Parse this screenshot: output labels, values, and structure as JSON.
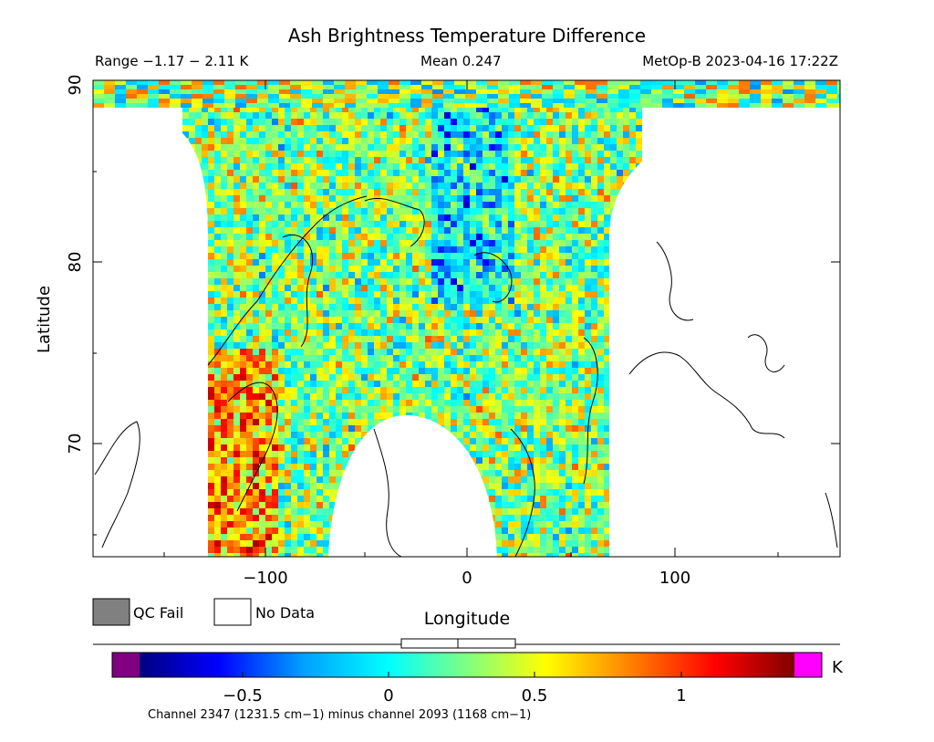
{
  "chart_data": {
    "type": "heatmap",
    "title": "Ash Brightness Temperature Difference",
    "header": {
      "range": "Range −1.17 − 2.11 K",
      "mean": "Mean 0.247",
      "source": "MetOp-B 2023-04-16 17:22Z"
    },
    "xlabel": "Longitude",
    "ylabel": "Latitude",
    "xlim": [
      -185,
      185
    ],
    "ylim": [
      64,
      90
    ],
    "x_ticks": [
      "−100",
      "0",
      "100"
    ],
    "y_ticks": [
      "70",
      "80",
      "90"
    ],
    "colorbar": {
      "unit": "K",
      "min": -0.95,
      "max": 1.4,
      "ticks": [
        "−0.5",
        "0",
        "0.5",
        "1"
      ],
      "colors": [
        "#000080",
        "#0000ff",
        "#00a0ff",
        "#00ffff",
        "#80ff80",
        "#ffff00",
        "#ff8000",
        "#ff0000",
        "#800000"
      ],
      "underflow_color": "#800080",
      "overflow_color": "#ff00ff",
      "caption": "Channel 2347 (1231.5 cm−1) minus channel 2093 (1168 cm−1)"
    },
    "legend": [
      {
        "label": "QC Fail",
        "color": "#808080"
      },
      {
        "label": "No Data",
        "color": "#ffffff"
      }
    ],
    "swath": {
      "lon_range": [
        -128,
        68
      ],
      "gap_lon_range": [
        -65,
        15
      ],
      "gap_top_lat": 71.5,
      "mean": 0.247
    }
  }
}
